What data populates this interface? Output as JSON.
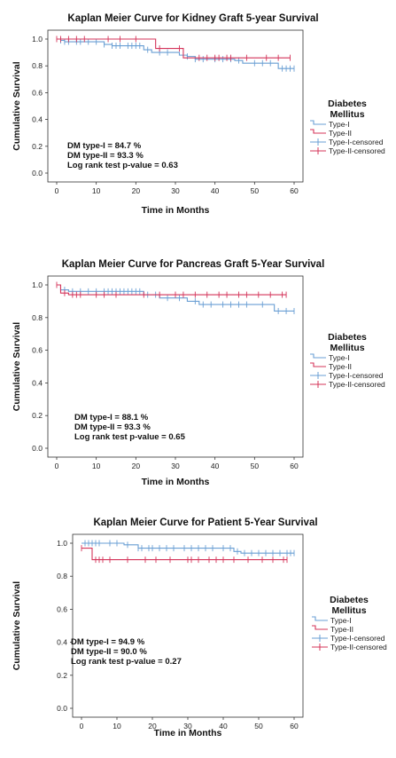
{
  "chart_data": [
    {
      "type": "line",
      "title": "Kaplan Meier Curve for Kidney Graft 5-year Survival",
      "xlabel": "Time in Months",
      "ylabel": "Cumulative Survival",
      "xlim": [
        0,
        60
      ],
      "ylim": [
        0,
        1
      ],
      "xticks": [
        0,
        10,
        20,
        30,
        40,
        50,
        60
      ],
      "yticks": [
        0.0,
        0.2,
        0.4,
        0.6,
        0.8,
        1.0
      ],
      "grid": false,
      "legend": {
        "title": "Diabetes Mellitus",
        "placement": "right",
        "entries": [
          "Type-I",
          "Type-II",
          "Type-I-censored",
          "Type-II-censored"
        ]
      },
      "annotations": [
        "DM type-I = 84.7 %",
        "DM type-II = 93.3 %",
        "Log rank test p-value = 0.63"
      ],
      "series": [
        {
          "name": "Type-I",
          "color": "#6a9fd4",
          "steps": [
            [
              0,
              1.0
            ],
            [
              1,
              0.99
            ],
            [
              2,
              0.98
            ],
            [
              12,
              0.96
            ],
            [
              14,
              0.95
            ],
            [
              22,
              0.92
            ],
            [
              24,
              0.9
            ],
            [
              31,
              0.88
            ],
            [
              33,
              0.87
            ],
            [
              35,
              0.85
            ],
            [
              45,
              0.84
            ],
            [
              47,
              0.82
            ],
            [
              56,
              0.78
            ]
          ],
          "end": 60,
          "censored": [
            1,
            2,
            3,
            5,
            6,
            8,
            10,
            12,
            14,
            15,
            16,
            18,
            19,
            20,
            21,
            23,
            26,
            28,
            33,
            35,
            37,
            40,
            42,
            44,
            46,
            50,
            52,
            54,
            57,
            58,
            59,
            60
          ]
        },
        {
          "name": "Type-II",
          "color": "#d4345a",
          "steps": [
            [
              0,
              1.0
            ],
            [
              25,
              0.93
            ],
            [
              32,
              0.86
            ]
          ],
          "end": 59,
          "censored": [
            0,
            1,
            3,
            5,
            7,
            13,
            16,
            20,
            26,
            31,
            36,
            38,
            40,
            41,
            43,
            44,
            48,
            53,
            56,
            59
          ]
        }
      ]
    },
    {
      "type": "line",
      "title": "Kaplan Meier Curve for Pancreas Graft 5-Year Survival",
      "xlabel": "Time in Months",
      "ylabel": "Cumulative Survival",
      "xlim": [
        0,
        60
      ],
      "ylim": [
        0,
        1
      ],
      "xticks": [
        0,
        10,
        20,
        30,
        40,
        50,
        60
      ],
      "yticks": [
        0.0,
        0.2,
        0.4,
        0.6,
        0.8,
        1.0
      ],
      "grid": false,
      "legend": {
        "title": "Diabetes Mellitus",
        "placement": "right",
        "entries": [
          "Type-I",
          "Type-II",
          "Type-I-censored",
          "Type-II-censored"
        ]
      },
      "annotations": [
        "DM type-I = 88.1 %",
        "DM type-II = 93.3 %",
        "Log rank test p-value = 0.65"
      ],
      "series": [
        {
          "name": "Type-I",
          "color": "#6a9fd4",
          "steps": [
            [
              0,
              1.0
            ],
            [
              1,
              0.97
            ],
            [
              3,
              0.96
            ],
            [
              22,
              0.94
            ],
            [
              26,
              0.92
            ],
            [
              33,
              0.9
            ],
            [
              36,
              0.88
            ],
            [
              55,
              0.84
            ]
          ],
          "end": 60,
          "censored": [
            1,
            2,
            4,
            6,
            8,
            10,
            12,
            13,
            14,
            15,
            16,
            17,
            18,
            19,
            20,
            21,
            23,
            25,
            28,
            31,
            35,
            37,
            39,
            42,
            44,
            46,
            48,
            52,
            56,
            58,
            60
          ]
        },
        {
          "name": "Type-II",
          "color": "#d4345a",
          "steps": [
            [
              0,
              1.0
            ],
            [
              1,
              0.95
            ],
            [
              3,
              0.94
            ]
          ],
          "end": 58,
          "censored": [
            0,
            2,
            4,
            5,
            6,
            10,
            12,
            15,
            22,
            26,
            30,
            32,
            35,
            38,
            41,
            43,
            46,
            48,
            51,
            54,
            57,
            58
          ]
        }
      ]
    },
    {
      "type": "line",
      "title": "Kaplan Meier Curve for Patient 5-Year Survival",
      "xlabel": "Time in Months",
      "ylabel": "Cumulative Survival",
      "xlim": [
        0,
        60
      ],
      "ylim": [
        0,
        1
      ],
      "xticks": [
        0,
        10,
        20,
        30,
        40,
        50,
        60
      ],
      "yticks": [
        0.0,
        0.2,
        0.4,
        0.6,
        0.8,
        1.0
      ],
      "grid": false,
      "legend": {
        "title": "Diabetes Mellitus",
        "placement": "right",
        "entries": [
          "Type-I",
          "Type-II",
          "Type-I-censored",
          "Type-II-censored"
        ]
      },
      "annotations": [
        "DM type-I = 94.9 %",
        "DM type-II = 90.0 %",
        "Log rank test p-value = 0.27"
      ],
      "series": [
        {
          "name": "Type-I",
          "color": "#6a9fd4",
          "steps": [
            [
              0,
              1.0
            ],
            [
              12,
              0.99
            ],
            [
              16,
              0.97
            ],
            [
              43,
              0.95
            ],
            [
              45,
              0.94
            ]
          ],
          "end": 60,
          "censored": [
            1,
            2,
            3,
            4,
            5,
            8,
            10,
            13,
            16,
            17,
            19,
            20,
            22,
            24,
            26,
            29,
            31,
            33,
            35,
            37,
            40,
            42,
            44,
            46,
            48,
            50,
            52,
            54,
            56,
            58,
            59,
            60
          ]
        },
        {
          "name": "Type-II",
          "color": "#d4345a",
          "steps": [
            [
              0,
              0.97
            ],
            [
              3,
              0.9
            ]
          ],
          "end": 58,
          "censored": [
            0,
            4,
            5,
            6,
            8,
            13,
            18,
            21,
            25,
            30,
            31,
            33,
            36,
            38,
            40,
            43,
            47,
            51,
            54,
            57,
            58
          ]
        }
      ]
    }
  ]
}
